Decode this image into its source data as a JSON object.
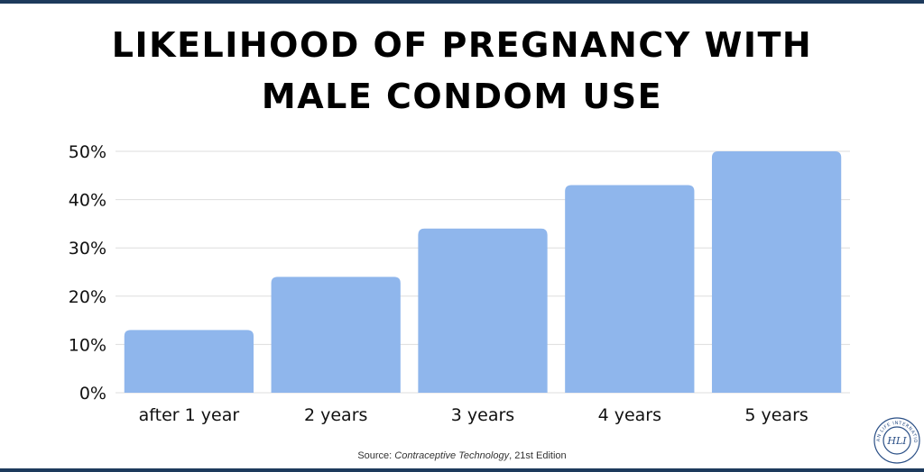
{
  "chart_data": {
    "type": "bar",
    "title": "LIKELIHOOD OF PREGNANCY WITH MALE CONDOM USE",
    "categories": [
      "after 1 year",
      "2 years",
      "3 years",
      "4 years",
      "5 years"
    ],
    "values": [
      13,
      24,
      34,
      43,
      50
    ],
    "ylim": [
      0,
      50
    ],
    "yticks": [
      0,
      10,
      20,
      30,
      40,
      50
    ],
    "ytick_labels": [
      "0%",
      "10%",
      "20%",
      "30%",
      "40%",
      "50%"
    ],
    "grid": true,
    "bar_color": "#8fb6ec"
  },
  "source": {
    "prefix": "Source: ",
    "title": "Contraceptive Technology",
    "suffix": ", 21st Edition"
  },
  "colors": {
    "border": "#1d3a5c",
    "grid": "#dddddd",
    "axis_text": "#111111",
    "logo": "#2a4f86"
  },
  "logo": {
    "icon": "hli-seal-icon",
    "text": "HUMAN LIFE INTERNATIONAL",
    "monogram": "HLI"
  }
}
